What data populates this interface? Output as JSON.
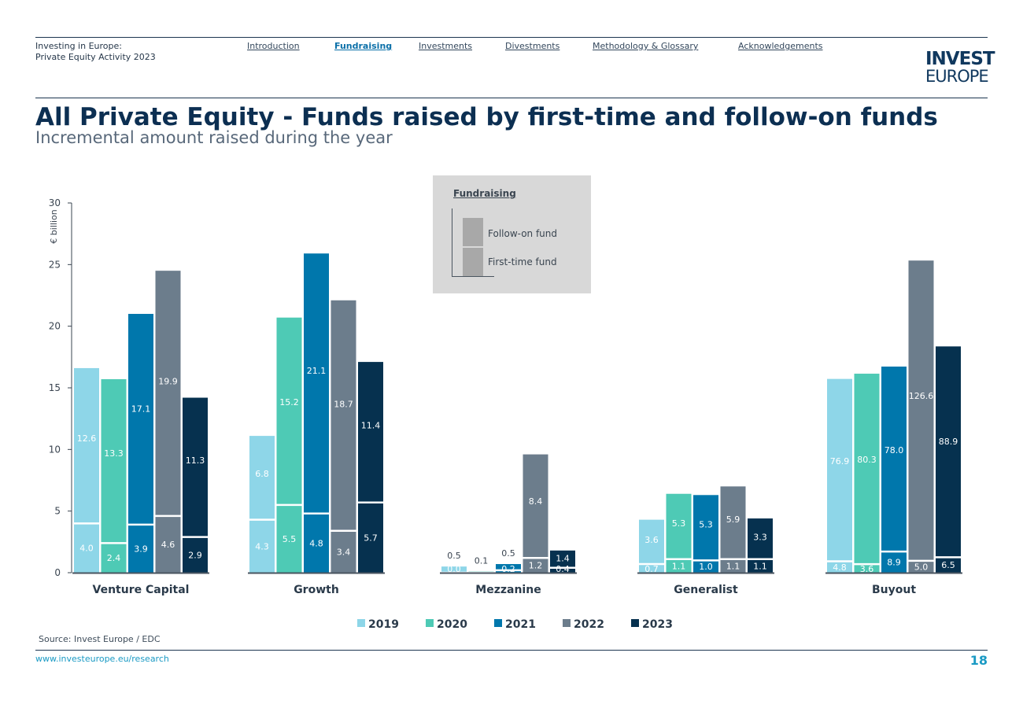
{
  "header": {
    "doc_title_line1": "Investing in Europe:",
    "doc_title_line2": "Private Equity Activity 2023",
    "nav": [
      {
        "label": "Introduction",
        "active": false
      },
      {
        "label": "Fundraising",
        "active": true
      },
      {
        "label": "Investments",
        "active": false
      },
      {
        "label": "Divestments",
        "active": false
      },
      {
        "label": "Methodology & Glossary",
        "active": false
      },
      {
        "label": "Acknowledgements",
        "active": false
      }
    ],
    "logo_line1": "INVEST",
    "logo_line2": "EUROPE"
  },
  "footer": {
    "source": "Source: Invest Europe / EDC",
    "url": "www.investeurope.eu/research",
    "page_number": "18"
  },
  "legend_box": {
    "title": "Fundraising",
    "follow_on_label": "Follow-on fund",
    "first_time_label": "First-time fund"
  },
  "colors": {
    "2019": "#8ed6e8",
    "2020": "#4ecab5",
    "2021": "#0077ac",
    "2022": "#6c7d8c",
    "2023": "#06314f",
    "accent": "#1a9ac4"
  },
  "chart_data": {
    "type": "bar",
    "stacked": true,
    "title": "All Private Equity - Funds raised by first-time and follow-on funds",
    "subtitle": "Incremental amount raised during the year",
    "ylabel": "€ billion",
    "xlabel": "",
    "ylim": [
      0,
      30
    ],
    "yticks": [
      "0",
      "5",
      "10",
      "15",
      "20",
      "25",
      "30"
    ],
    "categories": [
      "Venture Capital",
      "Growth",
      "Mezzanine",
      "Generalist",
      "Buyout"
    ],
    "years": [
      "2019",
      "2020",
      "2021",
      "2022",
      "2023"
    ],
    "legend": [
      "2019",
      "2020",
      "2021",
      "2022",
      "2023"
    ],
    "legend_position": "bottom",
    "bars": {
      "Venture Capital": [
        {
          "year": "2019",
          "first_time": 4.0,
          "follow_on": 12.6,
          "first_label": "4.0",
          "follow_label": "12.6"
        },
        {
          "year": "2020",
          "first_time": 2.4,
          "follow_on": 13.3,
          "first_label": "2.4",
          "follow_label": "13.3"
        },
        {
          "year": "2021",
          "first_time": 3.9,
          "follow_on": 17.1,
          "first_label": "3.9",
          "follow_label": "17.1"
        },
        {
          "year": "2022",
          "first_time": 4.6,
          "follow_on": 19.9,
          "first_label": "4.6",
          "follow_label": "19.9"
        },
        {
          "year": "2023",
          "first_time": 2.9,
          "follow_on": 11.3,
          "first_label": "2.9",
          "follow_label": "11.3"
        }
      ],
      "Growth": [
        {
          "year": "2019",
          "first_time": 4.3,
          "follow_on": 6.8,
          "first_label": "4.3",
          "follow_label": "6.8"
        },
        {
          "year": "2020",
          "first_time": 5.5,
          "follow_on": 15.2,
          "first_label": "5.5",
          "follow_label": "15.2"
        },
        {
          "year": "2021",
          "first_time": 4.8,
          "follow_on": 21.1,
          "first_label": "4.8",
          "follow_label": "21.1"
        },
        {
          "year": "2022",
          "first_time": 3.4,
          "follow_on": 18.7,
          "first_label": "3.4",
          "follow_label": "18.7"
        },
        {
          "year": "2023",
          "first_time": 5.7,
          "follow_on": 11.4,
          "first_label": "5.7",
          "follow_label": "11.4"
        }
      ],
      "Mezzanine": [
        {
          "year": "2019",
          "first_time": 0.0,
          "follow_on": 0.5,
          "first_label": "0.0",
          "follow_label": "0.5"
        },
        {
          "year": "2020",
          "first_time": 0.0,
          "follow_on": 0.1,
          "first_label": "",
          "follow_label": "0.1"
        },
        {
          "year": "2021",
          "first_time": 0.2,
          "follow_on": 0.5,
          "first_label": "0.2",
          "follow_label": "0.5"
        },
        {
          "year": "2022",
          "first_time": 1.2,
          "follow_on": 8.4,
          "first_label": "1.2",
          "follow_label": "8.4"
        },
        {
          "year": "2023",
          "first_time": 0.4,
          "follow_on": 1.4,
          "first_label": "0.4",
          "follow_label": "1.4"
        }
      ],
      "Generalist": [
        {
          "year": "2019",
          "first_time": 0.7,
          "follow_on": 3.6,
          "first_label": "0.7",
          "follow_label": "3.6"
        },
        {
          "year": "2020",
          "first_time": 1.1,
          "follow_on": 5.3,
          "first_label": "1.1",
          "follow_label": "5.3"
        },
        {
          "year": "2021",
          "first_time": 1.0,
          "follow_on": 5.3,
          "first_label": "1.0",
          "follow_label": "5.3"
        },
        {
          "year": "2022",
          "first_time": 1.1,
          "follow_on": 5.9,
          "first_label": "1.1",
          "follow_label": "5.9"
        },
        {
          "year": "2023",
          "first_time": 1.1,
          "follow_on": 3.3,
          "first_label": "1.1",
          "follow_label": "3.3"
        }
      ],
      "Buyout": [
        {
          "year": "2019",
          "first_time": 4.8,
          "follow_on": 76.9,
          "first_label": "4.8",
          "follow_label": "76.9"
        },
        {
          "year": "2020",
          "first_time": 3.6,
          "follow_on": 80.3,
          "first_label": "3.6",
          "follow_label": "80.3"
        },
        {
          "year": "2021",
          "first_time": 8.9,
          "follow_on": 78.0,
          "first_label": "8.9",
          "follow_label": "78.0"
        },
        {
          "year": "2022",
          "first_time": 5.0,
          "follow_on": 126.6,
          "first_label": "5.0",
          "follow_label": "126.6"
        },
        {
          "year": "2023",
          "first_time": 6.5,
          "follow_on": 88.9,
          "first_label": "6.5",
          "follow_label": "88.9"
        }
      ]
    }
  }
}
